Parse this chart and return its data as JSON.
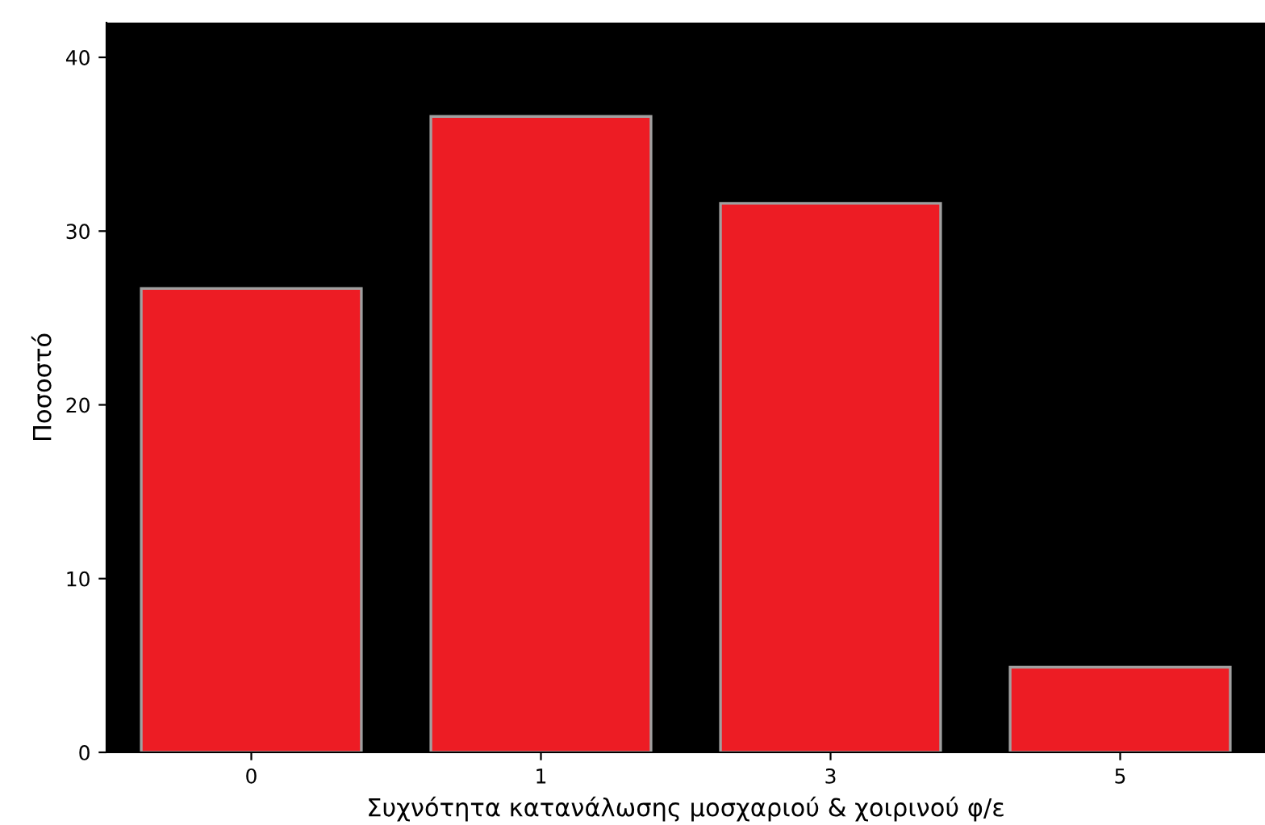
{
  "chart_data": {
    "type": "bar",
    "xlabel": "Συχνότητα κατανάλωσης μοσχαριού & χοιρινού φ/ε",
    "ylabel": "Ποσοστό",
    "categories": [
      "0",
      "1",
      "3",
      "5"
    ],
    "values": [
      26.7,
      36.6,
      31.6,
      4.9
    ],
    "color": "#ed1c24",
    "ylim": [
      0,
      42
    ],
    "yticks": [
      0,
      10,
      20,
      30,
      40
    ],
    "grid": false
  }
}
